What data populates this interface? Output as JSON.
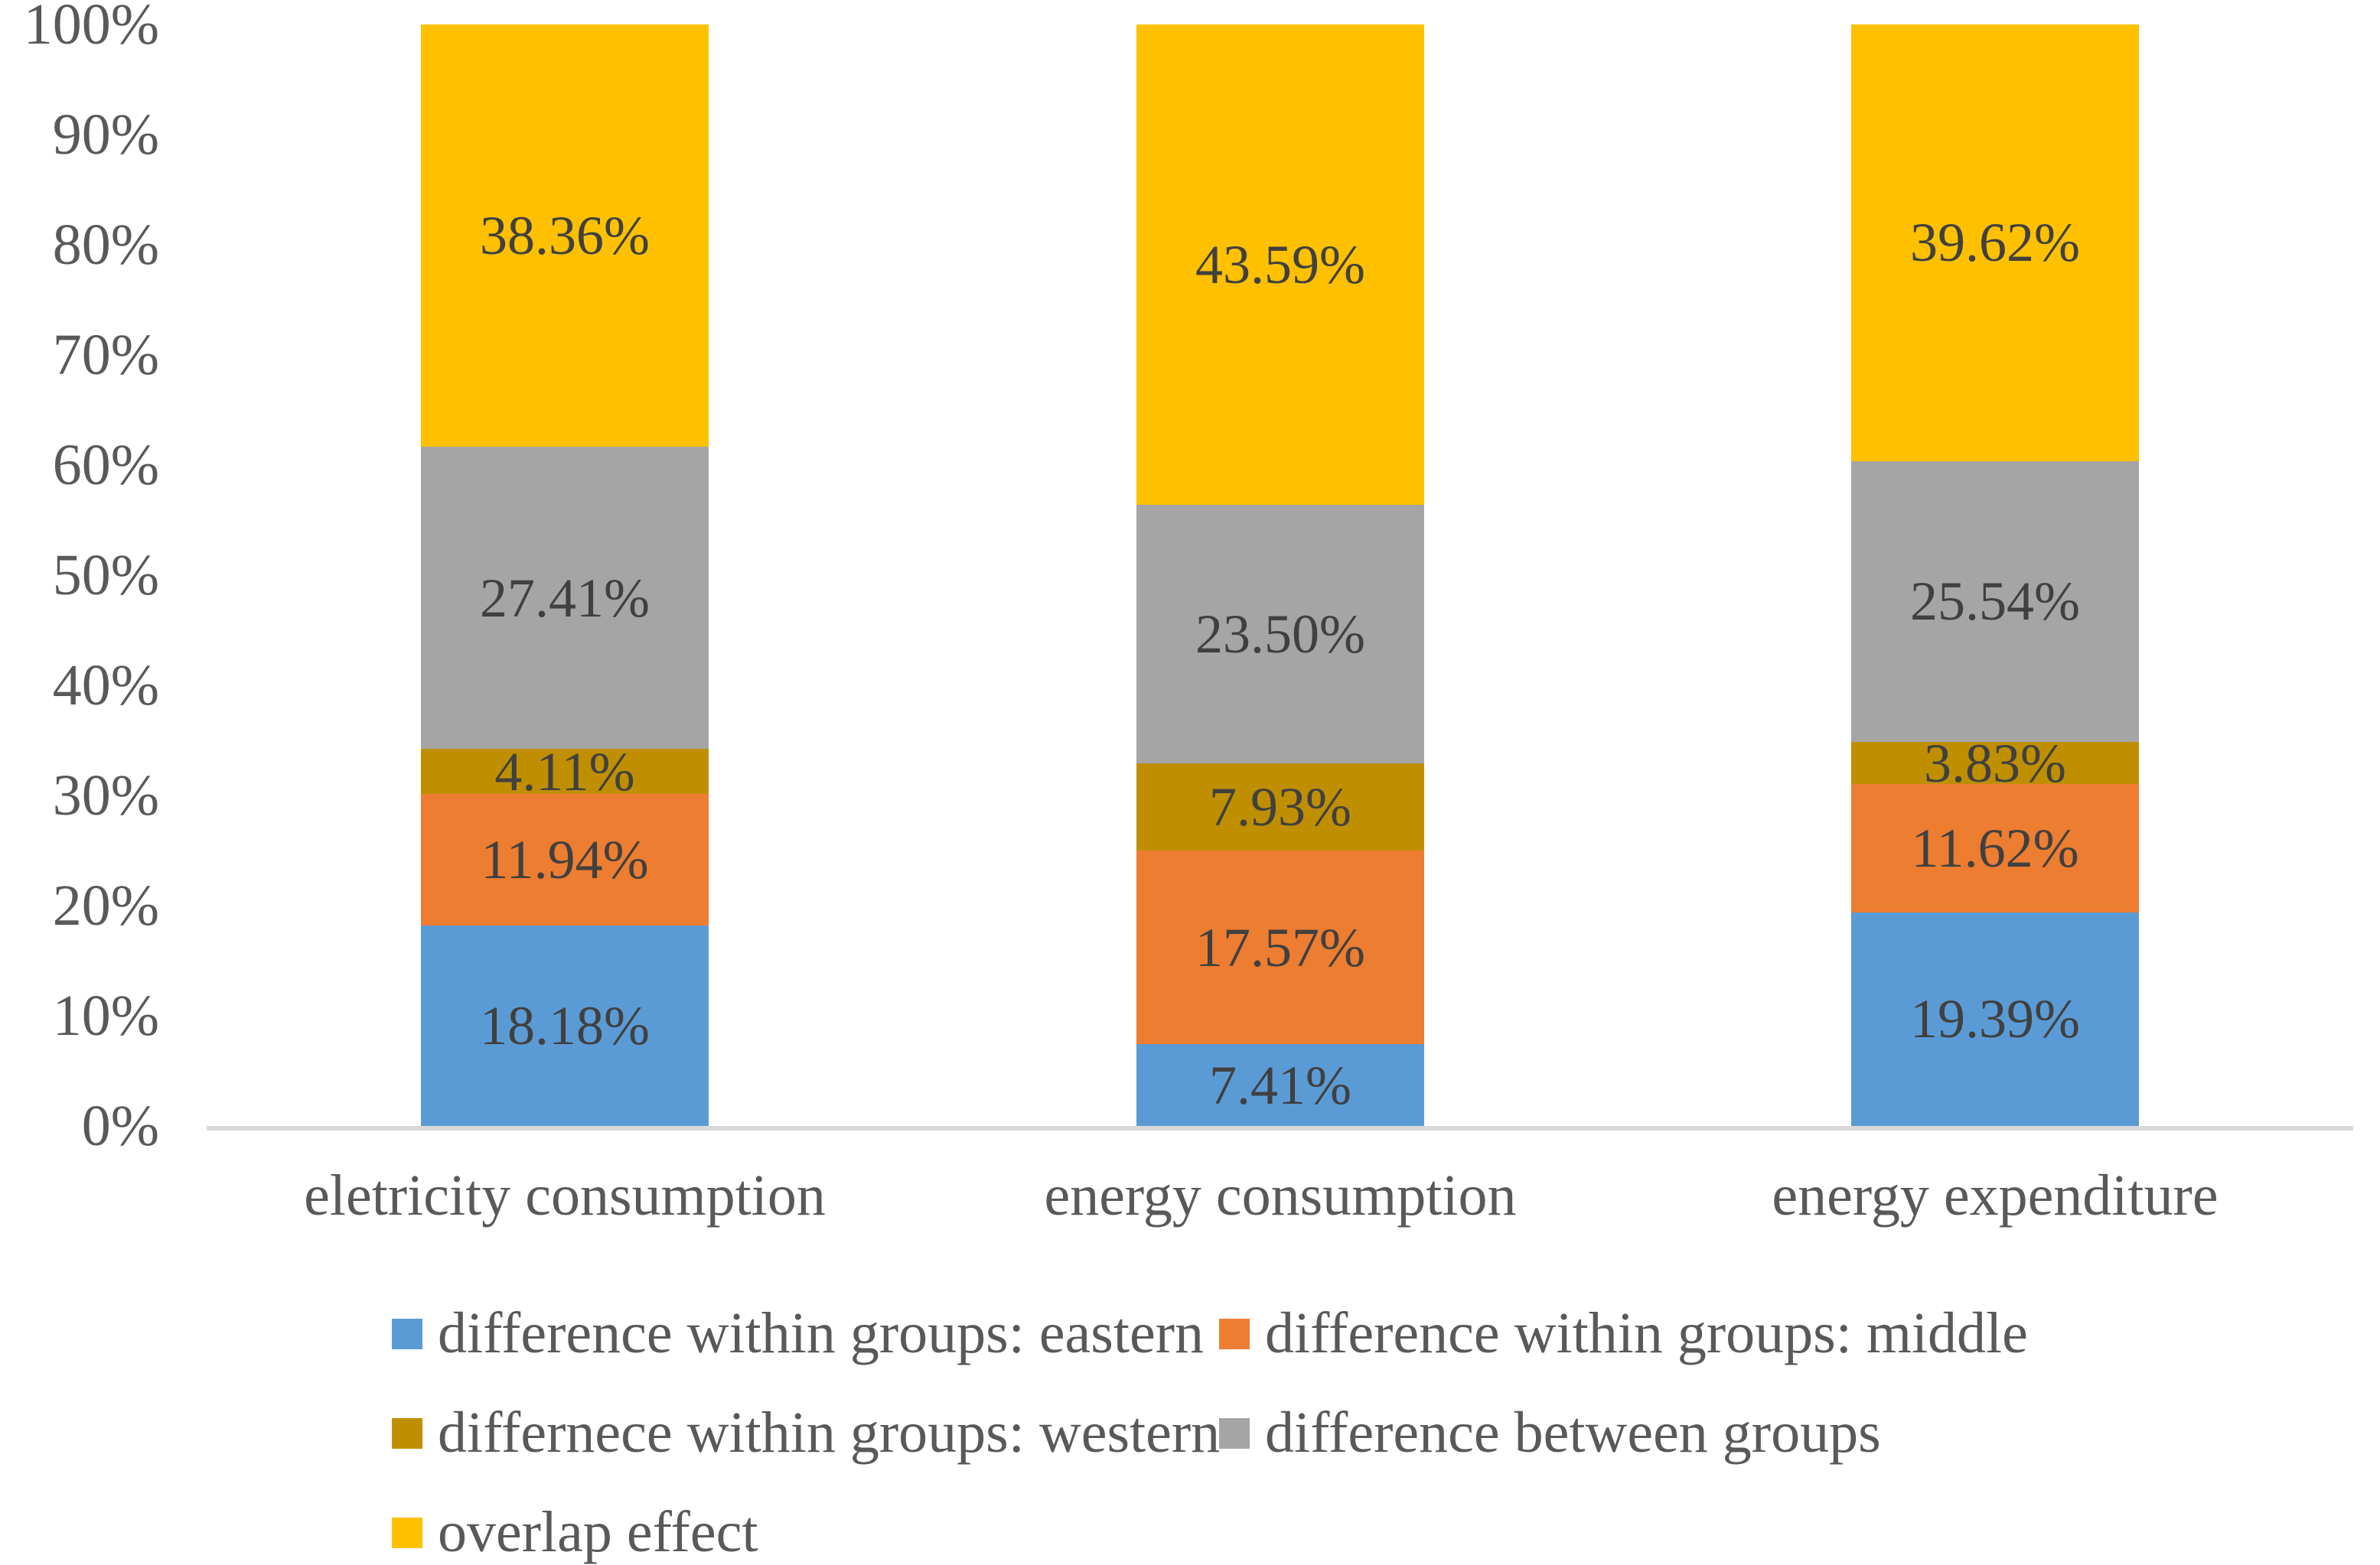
{
  "colors": {
    "eastern_blue": "#5B9BD5",
    "middle_orange": "#ED7D31",
    "western_gold": "#BF8F00",
    "between_gray": "#A5A5A5",
    "overlap_yellow": "#FFC000",
    "axis_line": "#D9D9D9",
    "axis_text": "#595959",
    "data_label_text": "#404040"
  },
  "y_axis": {
    "min": 0,
    "max": 100,
    "tick_labels": [
      "0%",
      "10%",
      "20%",
      "30%",
      "40%",
      "50%",
      "60%",
      "70%",
      "80%",
      "90%",
      "100%"
    ]
  },
  "chart_data": {
    "type": "bar",
    "stacked": true,
    "unit": "%",
    "title": "",
    "xlabel": "",
    "ylabel": "",
    "ylim": [
      0,
      100
    ],
    "grid": false,
    "legend_position": "bottom",
    "categories": [
      "eletricity consumption",
      "energy consumption",
      "energy expenditure"
    ],
    "series": [
      {
        "name": "difference within groups: eastern",
        "color": "#5B9BD5",
        "values": [
          18.18,
          7.41,
          19.39
        ],
        "labels": [
          "18.18%",
          "7.41%",
          "19.39%"
        ]
      },
      {
        "name": "difference within groups: middle",
        "color": "#ED7D31",
        "values": [
          11.94,
          17.57,
          11.62
        ],
        "labels": [
          "11.94%",
          "17.57%",
          "11.62%"
        ]
      },
      {
        "name": "differnece within groups: western",
        "color": "#BF8F00",
        "values": [
          4.11,
          7.93,
          3.83
        ],
        "labels": [
          "4.11%",
          "7.93%",
          "3.83%"
        ]
      },
      {
        "name": "difference between groups",
        "color": "#A5A5A5",
        "values": [
          27.41,
          23.5,
          25.54
        ],
        "labels": [
          "27.41%",
          "23.50%",
          "25.54%"
        ]
      },
      {
        "name": "overlap effect",
        "color": "#FFC000",
        "values": [
          38.36,
          43.59,
          39.62
        ],
        "labels": [
          "38.36%",
          "43.59%",
          "39.62%"
        ]
      }
    ],
    "legend_rows": [
      [
        0,
        1
      ],
      [
        2,
        3
      ],
      [
        4
      ]
    ]
  }
}
